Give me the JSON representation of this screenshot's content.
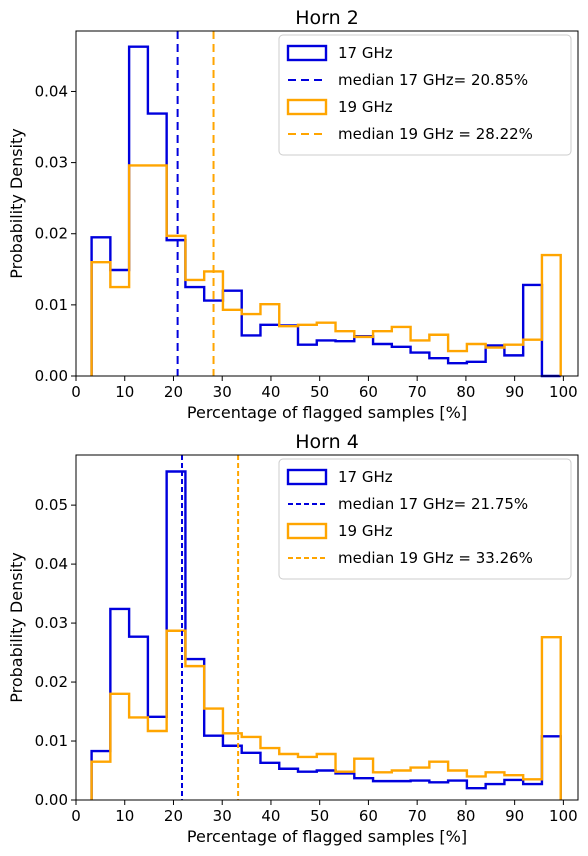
{
  "chart_data": [
    {
      "type": "histogram",
      "title": "Horn 2",
      "xlabel": "Percentage of flagged samples [%]",
      "ylabel": "Probability Density",
      "xlim": [
        0,
        103
      ],
      "ylim": [
        0,
        0.0485
      ],
      "xticks": [
        0,
        10,
        20,
        30,
        40,
        50,
        60,
        70,
        80,
        90,
        100
      ],
      "xtick_labels": [
        "0",
        "10",
        "20",
        "30",
        "40",
        "50",
        "60",
        "70",
        "80",
        "90",
        "100"
      ],
      "yticks": [
        0.0,
        0.01,
        0.02,
        0.03,
        0.04
      ],
      "ytick_labels": [
        "0.00",
        "0.01",
        "0.02",
        "0.03",
        "0.04"
      ],
      "legend_position": "top-right",
      "median_dash": "8,5",
      "series": [
        {
          "name": "17 GHz",
          "color": "#0000dd",
          "edges": [
            3.2,
            7.05,
            10.9,
            14.75,
            18.6,
            22.45,
            26.3,
            30.15,
            34.0,
            37.85,
            41.7,
            45.55,
            49.4,
            53.25,
            57.1,
            60.95,
            64.8,
            68.65,
            72.5,
            76.35,
            80.2,
            84.05,
            87.9,
            91.75,
            95.6,
            99.45
          ],
          "values": [
            0.0195,
            0.0149,
            0.0463,
            0.0369,
            0.0191,
            0.0125,
            0.0106,
            0.012,
            0.0057,
            0.0072,
            0.0071,
            0.0044,
            0.005,
            0.0049,
            0.0056,
            0.0045,
            0.0041,
            0.0033,
            0.0025,
            0.0018,
            0.002,
            0.0043,
            0.0029,
            0.0128,
            0.0
          ]
        },
        {
          "name": "19 GHz",
          "color": "#ffa500",
          "edges": [
            3.2,
            7.05,
            10.9,
            14.75,
            18.6,
            22.45,
            26.3,
            30.15,
            34.0,
            37.85,
            41.7,
            45.55,
            49.4,
            53.25,
            57.1,
            60.95,
            64.8,
            68.65,
            72.5,
            76.35,
            80.2,
            84.05,
            87.9,
            91.75,
            95.6,
            99.45
          ],
          "values": [
            0.016,
            0.0125,
            0.0296,
            0.0296,
            0.0197,
            0.0135,
            0.0147,
            0.0093,
            0.0087,
            0.0101,
            0.007,
            0.0072,
            0.0075,
            0.0063,
            0.0055,
            0.0063,
            0.0069,
            0.005,
            0.0058,
            0.0035,
            0.0045,
            0.004,
            0.0044,
            0.0051,
            0.017
          ]
        }
      ],
      "medians": [
        {
          "name": "median 17 GHz= 20.85%",
          "value": 20.85,
          "color": "#0000dd"
        },
        {
          "name": "median 19 GHz = 28.22%",
          "value": 28.22,
          "color": "#ffa500"
        }
      ]
    },
    {
      "type": "histogram",
      "title": "Horn 4",
      "xlabel": "Percentage of flagged samples [%]",
      "ylabel": "Probability Density",
      "xlim": [
        0,
        103
      ],
      "ylim": [
        0,
        0.0585
      ],
      "xticks": [
        0,
        10,
        20,
        30,
        40,
        50,
        60,
        70,
        80,
        90,
        100
      ],
      "xtick_labels": [
        "0",
        "10",
        "20",
        "30",
        "40",
        "50",
        "60",
        "70",
        "80",
        "90",
        "100"
      ],
      "yticks": [
        0.0,
        0.01,
        0.02,
        0.03,
        0.04,
        0.05
      ],
      "ytick_labels": [
        "0.00",
        "0.01",
        "0.02",
        "0.03",
        "0.04",
        "0.05"
      ],
      "legend_position": "top-right",
      "median_dash": "5,3",
      "series": [
        {
          "name": "17 GHz",
          "color": "#0000dd",
          "edges": [
            3.2,
            7.05,
            10.9,
            14.75,
            18.6,
            22.45,
            26.3,
            30.15,
            34.0,
            37.85,
            41.7,
            45.55,
            49.4,
            53.25,
            57.1,
            60.95,
            64.8,
            68.65,
            72.5,
            76.35,
            80.2,
            84.05,
            87.9,
            91.75,
            95.6,
            99.45
          ],
          "values": [
            0.0083,
            0.0324,
            0.0277,
            0.0141,
            0.0557,
            0.0239,
            0.0109,
            0.0092,
            0.008,
            0.0063,
            0.0053,
            0.0048,
            0.005,
            0.0045,
            0.0037,
            0.0032,
            0.0032,
            0.0033,
            0.003,
            0.0033,
            0.002,
            0.0027,
            0.0034,
            0.0027,
            0.0108
          ]
        },
        {
          "name": "19 GHz",
          "color": "#ffa500",
          "edges": [
            3.2,
            7.05,
            10.9,
            14.75,
            18.6,
            22.45,
            26.3,
            30.15,
            34.0,
            37.85,
            41.7,
            45.55,
            49.4,
            53.25,
            57.1,
            60.95,
            64.8,
            68.65,
            72.5,
            76.35,
            80.2,
            84.05,
            87.9,
            91.75,
            95.6,
            99.45
          ],
          "values": [
            0.0065,
            0.018,
            0.014,
            0.0117,
            0.0287,
            0.0227,
            0.0155,
            0.0113,
            0.0107,
            0.0088,
            0.0078,
            0.0073,
            0.0078,
            0.0048,
            0.007,
            0.0047,
            0.005,
            0.0055,
            0.0065,
            0.005,
            0.004,
            0.0047,
            0.0042,
            0.0035,
            0.0276
          ]
        }
      ],
      "medians": [
        {
          "name": "median 17 GHz= 21.75%",
          "value": 21.75,
          "color": "#0000dd"
        },
        {
          "name": "median 19 GHz = 33.26%",
          "value": 33.26,
          "color": "#ffa500"
        }
      ]
    }
  ]
}
